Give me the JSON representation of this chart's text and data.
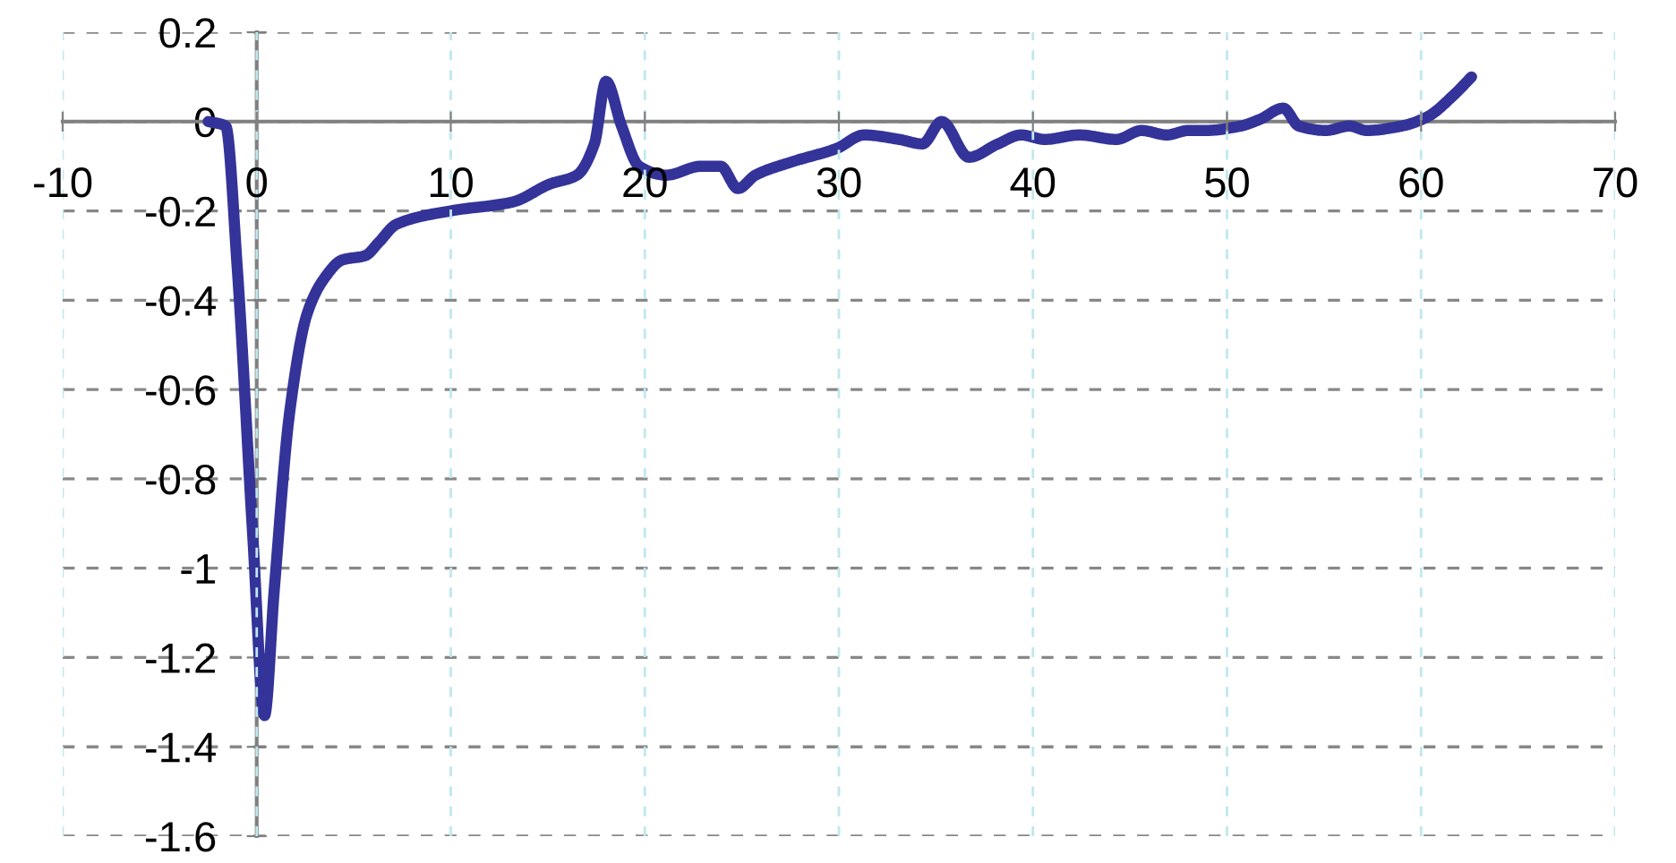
{
  "chart_data": {
    "type": "line",
    "color": "#333399",
    "marker": "none",
    "line_style": "solid",
    "grid": true,
    "x": [
      -2.5,
      -1.6,
      -1,
      -0.2,
      0.4,
      0.9,
      1.7,
      2.6,
      3.5,
      4.4,
      5.6,
      6.3,
      7.2,
      10,
      13.2,
      15.1,
      16.5,
      17.4,
      18,
      18.8,
      19.7,
      21.1,
      22.9,
      23.9,
      24.8,
      25.7,
      27.6,
      29.9,
      31.3,
      33.1,
      34.3,
      35.3,
      36.7,
      38.2,
      39.4,
      40.6,
      42.4,
      44.3,
      45.6,
      46.9,
      48,
      48.9,
      50.7,
      51.7,
      52.9,
      53.7,
      55.1,
      56.3,
      57.2,
      59,
      60.3,
      61.7,
      62.6
    ],
    "values": [
      0,
      -0.01,
      -0.33,
      -0.93,
      -1.33,
      -1.05,
      -0.65,
      -0.43,
      -0.35,
      -0.31,
      -0.3,
      -0.27,
      -0.23,
      -0.2,
      -0.18,
      -0.14,
      -0.12,
      -0.05,
      0.09,
      -0.01,
      -0.1,
      -0.12,
      -0.1,
      -0.1,
      -0.15,
      -0.12,
      -0.09,
      -0.06,
      -0.03,
      -0.04,
      -0.05,
      0,
      -0.08,
      -0.05,
      -0.03,
      -0.04,
      -0.03,
      -0.04,
      -0.02,
      -0.03,
      -0.02,
      -0.02,
      -0.01,
      0.005,
      0.03,
      -0.01,
      -0.02,
      -0.01,
      -0.02,
      -0.01,
      0.01,
      0.06,
      0.1
    ],
    "xlim": [
      -10,
      70
    ],
    "ylim": [
      -1.6,
      0.2
    ],
    "xticks": [
      -10,
      0,
      10,
      20,
      30,
      40,
      50,
      60,
      70
    ],
    "yticks": [
      -1.6,
      -1.4,
      -1.2,
      -1,
      -0.8,
      -0.6,
      -0.4,
      -0.2,
      0,
      0.2
    ]
  }
}
